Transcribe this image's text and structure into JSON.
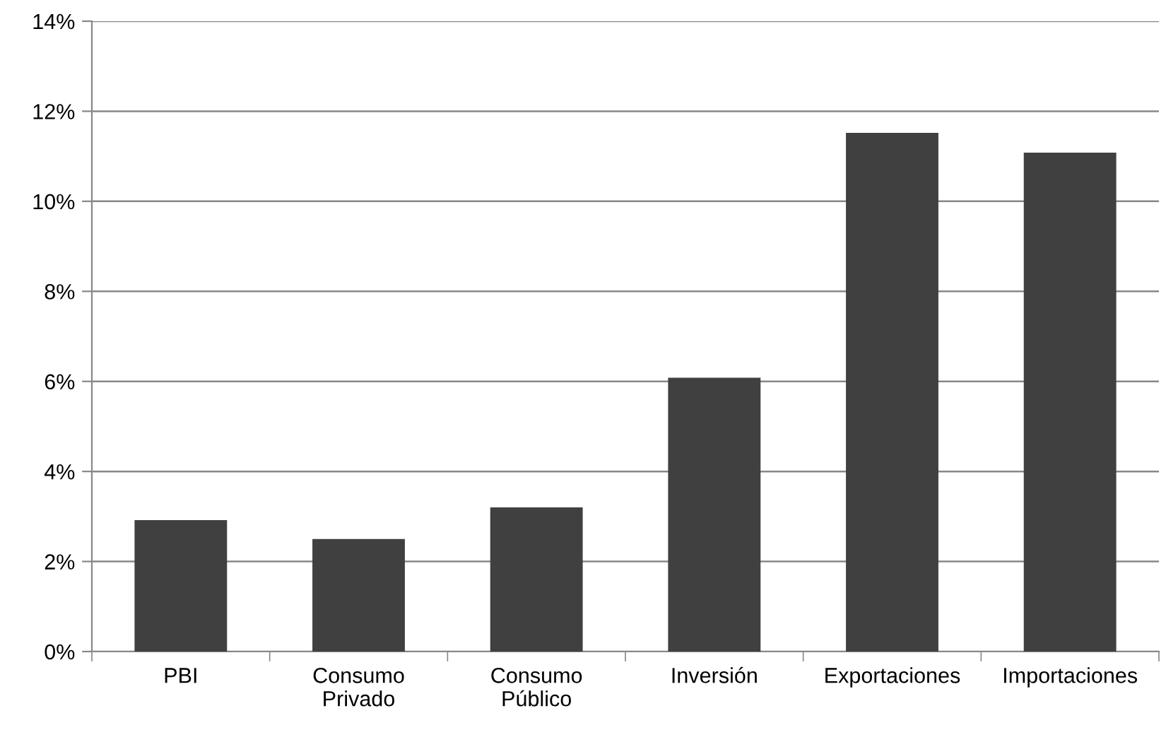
{
  "chart_data": {
    "type": "bar",
    "categories": [
      "PBI",
      "Consumo\nPrivado",
      "Consumo\nPúblico",
      "Inversión",
      "Exportaciones",
      "Importaciones"
    ],
    "values": [
      2.92,
      2.5,
      3.2,
      6.08,
      11.52,
      11.08
    ],
    "color": "#404040",
    "ylim": [
      0,
      14
    ],
    "yticks": [
      {
        "value": 0,
        "label": "0%"
      },
      {
        "value": 2,
        "label": "2%"
      },
      {
        "value": 4,
        "label": "4%"
      },
      {
        "value": 6,
        "label": "6%"
      },
      {
        "value": 8,
        "label": "8%"
      },
      {
        "value": 10,
        "label": "10%"
      },
      {
        "value": 12,
        "label": "12%"
      },
      {
        "value": 14,
        "label": "14%"
      }
    ],
    "grid": "y",
    "legend": false
  }
}
